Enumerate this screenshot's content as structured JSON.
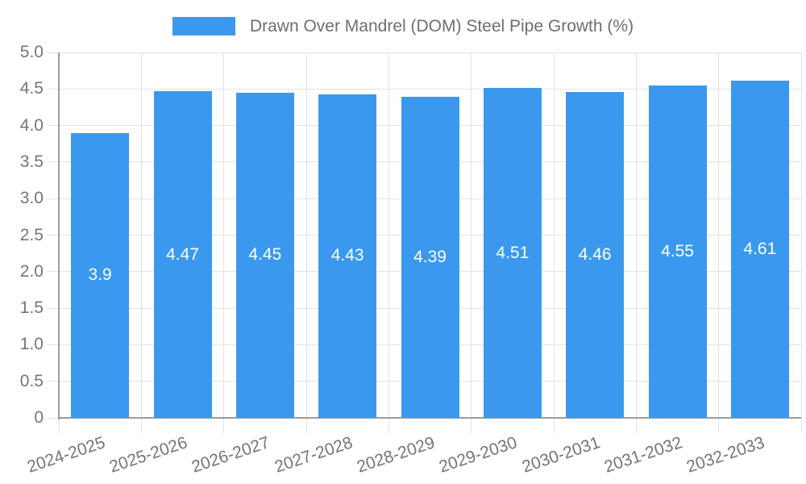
{
  "chart_data": {
    "type": "bar",
    "title": "Drawn Over Mandrel (DOM) Steel Pipe Growth (%)",
    "categories": [
      "2024-2025",
      "2025-2026",
      "2026-2027",
      "2027-2028",
      "2028-2029",
      "2029-2030",
      "2030-2031",
      "2031-2032",
      "2032-2033"
    ],
    "values": [
      3.9,
      4.47,
      4.45,
      4.43,
      4.39,
      4.51,
      4.46,
      4.55,
      4.61
    ],
    "value_labels": [
      "3.9",
      "4.47",
      "4.45",
      "4.43",
      "4.39",
      "4.51",
      "4.46",
      "4.55",
      "4.61"
    ],
    "xlabel": "",
    "ylabel": "",
    "ylim": [
      0,
      5
    ],
    "ytick_step": 0.5,
    "ytick_labels": [
      "0",
      "0.5",
      "1.0",
      "1.5",
      "2.0",
      "2.5",
      "3.0",
      "3.5",
      "4.0",
      "4.5",
      "5.0"
    ],
    "grid": true,
    "legend_position": "top",
    "colors": {
      "bar": "#3A99EF",
      "grid": "#E3E3E3",
      "axis": "#9C9C9C",
      "tick_text": "#757575",
      "title_text": "#6E6E6E",
      "bar_label": "#FFFFFF",
      "background": "#FFFFFF"
    }
  }
}
